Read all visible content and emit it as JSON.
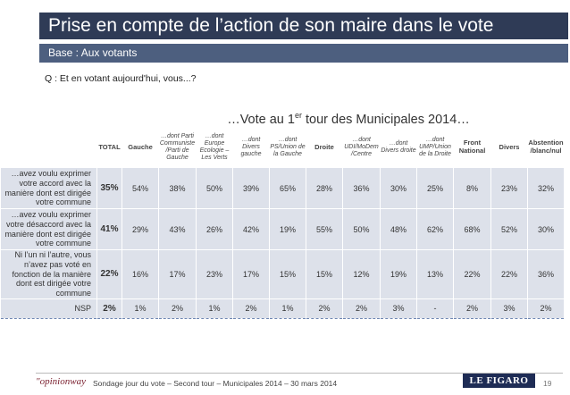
{
  "header": {
    "title": "Prise en compte de l’action de son maire dans le vote",
    "subtitle": "Base : Aux votants"
  },
  "question": "Q : Et en votant aujourd'hui, vous...?",
  "vote_heading": {
    "before_sup": "…Vote au 1",
    "sup": "er",
    "after_sup": " tour des Municipales 2014…"
  },
  "table": {
    "columns": [
      {
        "label": "TOTAL",
        "style": "bold"
      },
      {
        "label": "Gauche",
        "style": "bold"
      },
      {
        "label": "…dont Parti Communiste /Parti de Gauche",
        "style": "italic"
      },
      {
        "label": "…dont Europe Ecologie – Les Verts",
        "style": "italic"
      },
      {
        "label": "…dont Divers gauche",
        "style": "italic"
      },
      {
        "label": "…dont PS/Union de la Gauche",
        "style": "italic"
      },
      {
        "label": "Droite",
        "style": "bold"
      },
      {
        "label": "…dont UDI/MoDem /Centre",
        "style": "italic"
      },
      {
        "label": "…dont Divers droite",
        "style": "italic"
      },
      {
        "label": "…dont UMP/Union de la Droite",
        "style": "italic"
      },
      {
        "label": "Front National",
        "style": "bold"
      },
      {
        "label": "Divers",
        "style": "bold"
      },
      {
        "label": "Abstention /blanc/nul",
        "style": "bold"
      }
    ],
    "rows": [
      {
        "label": "…avez voulu exprimer votre accord avec la manière dont est dirigée votre commune",
        "values": [
          "35%",
          "54%",
          "38%",
          "50%",
          "39%",
          "65%",
          "28%",
          "36%",
          "30%",
          "25%",
          "8%",
          "23%",
          "32%"
        ]
      },
      {
        "label": "…avez voulu exprimer votre désaccord avec la manière dont est dirigée votre commune",
        "values": [
          "41%",
          "29%",
          "43%",
          "26%",
          "42%",
          "19%",
          "55%",
          "50%",
          "48%",
          "62%",
          "68%",
          "52%",
          "30%"
        ]
      },
      {
        "label": "Ni l’un ni l’autre, vous n’avez pas voté en fonction de la manière dont est dirigée votre commune",
        "values": [
          "22%",
          "16%",
          "17%",
          "23%",
          "17%",
          "15%",
          "15%",
          "12%",
          "19%",
          "13%",
          "22%",
          "22%",
          "36%"
        ]
      },
      {
        "label": "NSP",
        "values": [
          "2%",
          "1%",
          "2%",
          "1%",
          "2%",
          "1%",
          "2%",
          "2%",
          "3%",
          "-",
          "2%",
          "3%",
          "2%"
        ]
      }
    ]
  },
  "footer": {
    "brand": "\"opinionway",
    "text": "Sondage jour du vote – Second tour – Municipales 2014 – 30 mars 2014",
    "newspaper": "LE FIGARO",
    "page": "19"
  }
}
